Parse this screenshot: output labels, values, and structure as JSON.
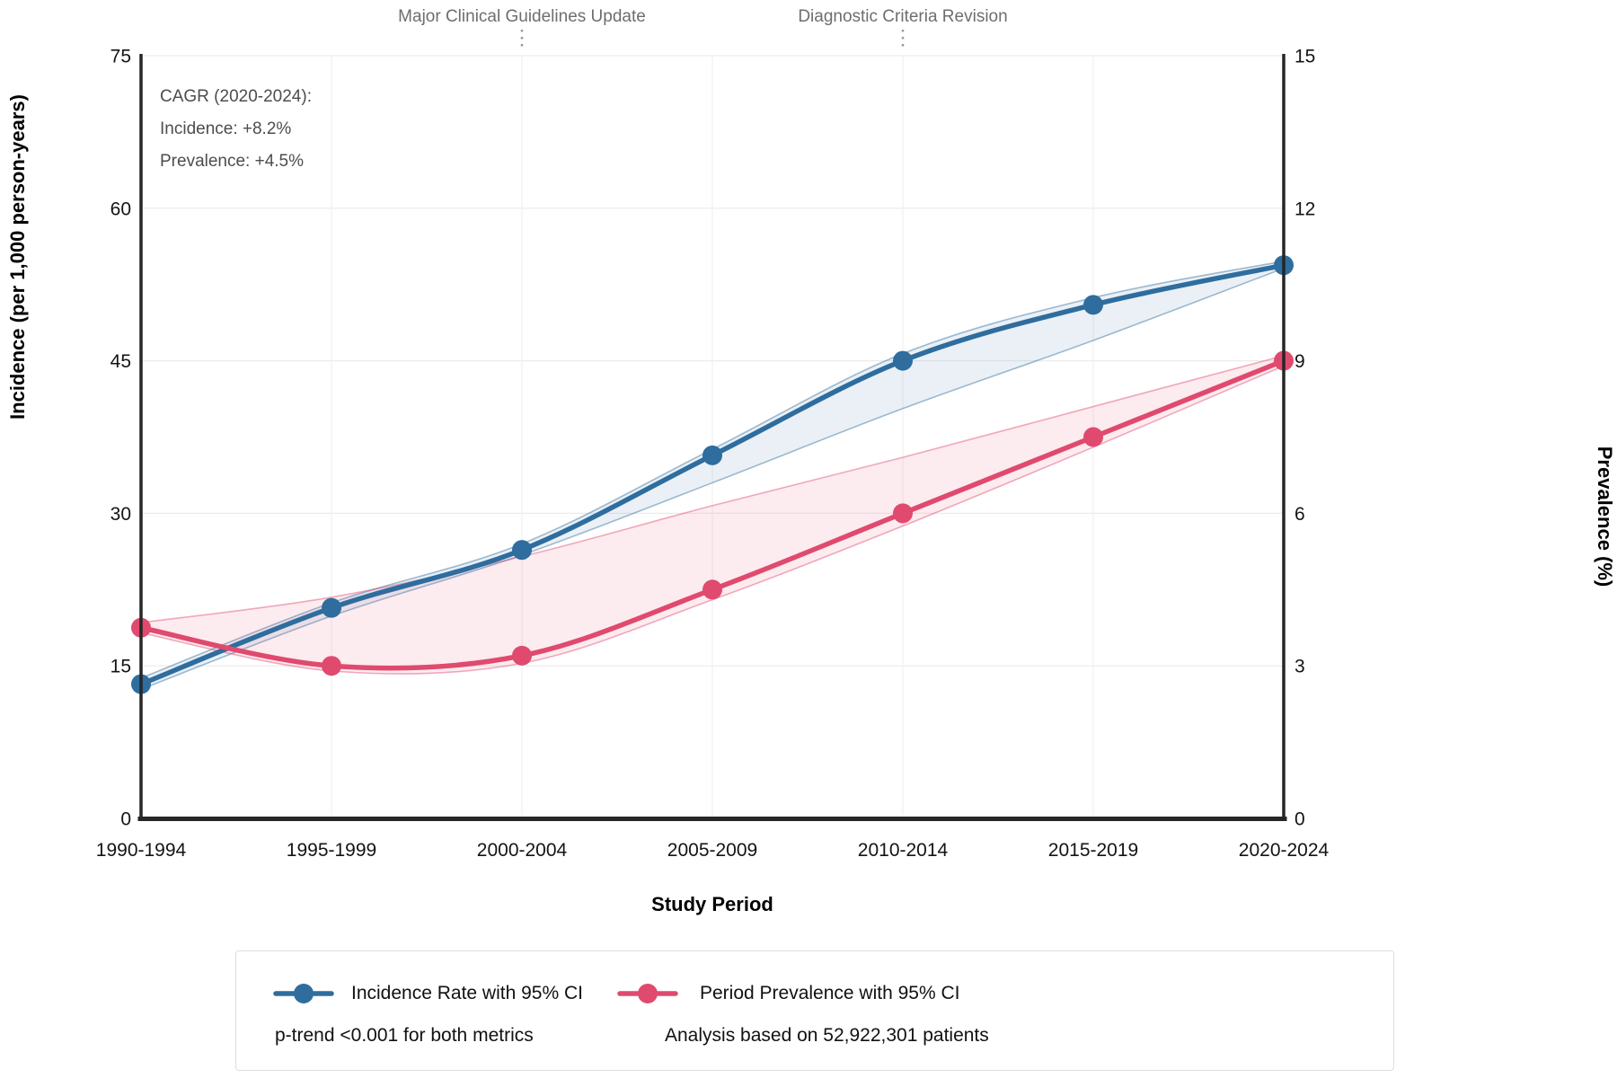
{
  "chart_data": {
    "type": "line",
    "categories": [
      "1990-1994",
      "1995-1999",
      "2000-2004",
      "2005-2009",
      "2010-2014",
      "2015-2019",
      "2020-2024"
    ],
    "series": [
      {
        "name": "Incidence Rate with 95% CI",
        "axis": "left",
        "values": [
          13.2,
          20.7,
          26.4,
          35.7,
          45.0,
          50.5,
          54.4
        ],
        "ci_upper": [
          13.8,
          21.2,
          27.0,
          36.3,
          45.7,
          51.2,
          54.8
        ],
        "ci_lower": [
          12.7,
          19.9,
          25.9,
          33.0,
          40.3,
          47.0,
          54.1
        ]
      },
      {
        "name": "Period Prevalence with 95% CI",
        "axis": "right",
        "values": [
          3.75,
          3.0,
          3.2,
          4.5,
          6.0,
          7.5,
          9.0
        ],
        "ci_upper": [
          3.85,
          4.35,
          5.15,
          6.15,
          7.1,
          8.1,
          9.1
        ],
        "ci_lower": [
          3.65,
          2.9,
          3.05,
          4.3,
          5.75,
          7.3,
          8.9
        ]
      }
    ],
    "left_axis": {
      "label": "Incidence (per 1,000 person-years)",
      "ticks": [
        0,
        15,
        30,
        45,
        60,
        75
      ],
      "range": [
        0,
        75
      ]
    },
    "right_axis": {
      "label": "Prevalence (%)",
      "ticks": [
        0,
        3,
        6,
        9,
        12,
        15
      ],
      "range": [
        0,
        15
      ]
    },
    "x_axis": {
      "label": "Study Period"
    },
    "annotations": [
      {
        "label": "Major Clinical Guidelines Update",
        "category": "2000-2004"
      },
      {
        "label": "Diagnostic Criteria Revision",
        "category": "2010-2014"
      }
    ],
    "grid": true,
    "legend_position": "bottom"
  },
  "cagr": {
    "line1": "CAGR (2020-2024):",
    "line2": "Incidence: +8.2%",
    "line3": "Prevalence: +4.5%"
  },
  "legend": {
    "items": [
      {
        "label": "Incidence Rate with 95% CI"
      },
      {
        "label": "Period Prevalence with 95% CI"
      }
    ],
    "note_left": "p-trend <0.001 for both metrics",
    "note_right": "Analysis based on 52,922,301 patients"
  },
  "colors": {
    "incidence": "#2e6d9e",
    "prevalence": "#e04a6e",
    "incidence_band": "rgba(46,109,158,0.10)",
    "prevalence_band": "rgba(224,74,110,0.11)",
    "annotation_text": "#6e6e6e",
    "annotation_line": "#999999",
    "grid": "#ececec",
    "spine": "#262626",
    "tick_text": "#141414"
  }
}
